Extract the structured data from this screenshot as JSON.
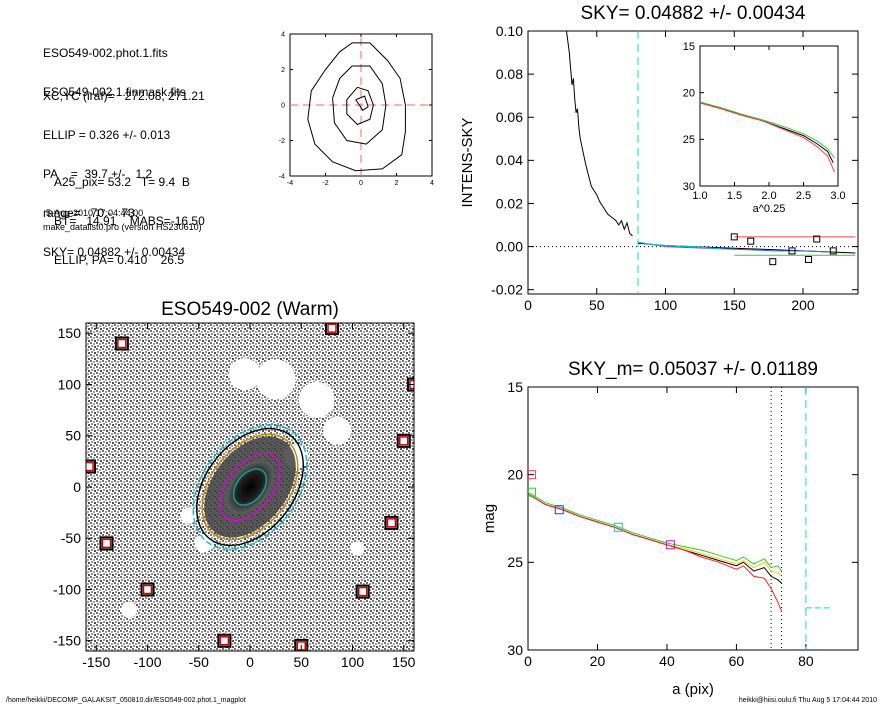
{
  "info": {
    "lines_a": [
      "ESO549-002.phot.1.fits",
      "ESO549-002.1.finmask.fits"
    ],
    "lines_b": [
      "XC,YC (iraf)=   272.08, 271.21",
      "ELLIP = 0.326 +/- 0.013",
      "PA    =  39.7 +/-   1.2",
      "range=   70.-   73.",
      "SKY= 0.04882 +/- 0.00434"
    ],
    "lines_c": [
      "A25_pix= 53.2   T= 9.4  B",
      "BT=   14.91    MABS=-16.50",
      "ELLIP, PA= 0.410    26.5"
    ],
    "timestamp": "5-Aug-2010 17:04:44.00",
    "program": "make_datalist0.pro (version HS230610)"
  },
  "footer": {
    "left": "/home/heikki/DECOMP_GALAKSIT_050810.dir/ESO549-002.phot.1_magplot",
    "right": "heikki@hiisi.oulu.fi  Thu Aug  5 17:04:44 2010"
  },
  "chart_data": [
    {
      "id": "contour",
      "type": "contour",
      "xlim": [
        -4,
        4
      ],
      "ylim": [
        -4,
        4
      ],
      "xticks": [
        -4,
        -2,
        0,
        2,
        4
      ],
      "yticks": [
        -4,
        -2,
        0,
        2,
        4
      ],
      "contours": [
        [
          [
            -0.5,
            3.5
          ],
          [
            0.5,
            3.5
          ],
          [
            1.5,
            2.5
          ],
          [
            2.2,
            1.5
          ],
          [
            2.5,
            0
          ],
          [
            2.5,
            -1.5
          ],
          [
            2.3,
            -2.8
          ],
          [
            1.2,
            -3.6
          ],
          [
            -0.3,
            -3.7
          ],
          [
            -1.6,
            -3.2
          ],
          [
            -2.6,
            -2.2
          ],
          [
            -3.0,
            -0.8
          ],
          [
            -2.8,
            0.8
          ],
          [
            -2.0,
            2.0
          ],
          [
            -1.2,
            3.0
          ],
          [
            -0.5,
            3.5
          ]
        ],
        [
          [
            -0.5,
            2.2
          ],
          [
            0.5,
            2.2
          ],
          [
            1.2,
            1.2
          ],
          [
            1.4,
            0
          ],
          [
            1.2,
            -1.4
          ],
          [
            0.3,
            -2.2
          ],
          [
            -0.8,
            -2.0
          ],
          [
            -1.5,
            -1.0
          ],
          [
            -1.6,
            0.4
          ],
          [
            -1.2,
            1.5
          ],
          [
            -0.5,
            2.2
          ]
        ],
        [
          [
            -0.2,
            1.0
          ],
          [
            0.4,
            0.8
          ],
          [
            0.7,
            0.0
          ],
          [
            0.5,
            -0.8
          ],
          [
            -0.2,
            -1.1
          ],
          [
            -0.8,
            -0.5
          ],
          [
            -0.8,
            0.3
          ],
          [
            -0.2,
            1.0
          ]
        ],
        [
          [
            -0.3,
            0.3
          ],
          [
            0.2,
            0.5
          ],
          [
            0.4,
            -0.1
          ],
          [
            0.1,
            -0.3
          ],
          [
            -0.3,
            0.3
          ]
        ]
      ],
      "crosshair": [
        0,
        0
      ],
      "colors": {
        "contour": "#000000",
        "crosshair": "#ff6666"
      }
    },
    {
      "id": "sky",
      "type": "line",
      "title": "SKY= 0.04882 +/- 0.00434",
      "xlabel": "",
      "ylabel": "INTENS-SKY",
      "xlim": [
        0,
        240
      ],
      "ylim": [
        -0.022,
        0.1
      ],
      "xticks": [
        0,
        50,
        100,
        150,
        200
      ],
      "yticks": [
        -0.02,
        0.0,
        0.02,
        0.04,
        0.06,
        0.08,
        0.1
      ],
      "ytick_labels": [
        "-0.02",
        "0.00",
        "0.02",
        "0.04",
        "0.06",
        "0.08",
        "0.10"
      ],
      "vline": 80,
      "profile": {
        "x": [
          28,
          30,
          32,
          33,
          34,
          35,
          36,
          37,
          38,
          40,
          42,
          44,
          46,
          48,
          50,
          52,
          54,
          56,
          58,
          60,
          62,
          64,
          66,
          68,
          70,
          72,
          74,
          76
        ],
        "y": [
          0.105,
          0.09,
          0.075,
          0.078,
          0.068,
          0.062,
          0.064,
          0.055,
          0.05,
          0.044,
          0.038,
          0.033,
          0.028,
          0.026,
          0.024,
          0.021,
          0.019,
          0.017,
          0.015,
          0.014,
          0.013,
          0.012,
          0.01,
          0.012,
          0.008,
          0.011,
          0.006,
          0.005
        ]
      },
      "series": [
        {
          "name": "",
          "color": "#000000",
          "x": [
            80,
            90,
            100,
            120,
            140,
            160,
            180,
            200,
            220,
            238
          ],
          "y": [
            0.0015,
            0.001,
            0.0005,
            0.0,
            -0.0005,
            -0.001,
            -0.0015,
            -0.002,
            -0.0025,
            -0.003
          ]
        },
        {
          "name": "",
          "color": "#3366ff",
          "x": [
            80,
            90,
            100,
            120,
            140,
            160,
            180,
            200,
            220
          ],
          "y": [
            0.002,
            0.001,
            0.0,
            -0.0005,
            -0.001,
            -0.0015,
            -0.002,
            -0.002,
            -0.0025
          ]
        },
        {
          "name": "",
          "color": "#00cccc",
          "x": [
            80,
            90,
            100,
            120,
            140
          ],
          "y": [
            0.002,
            0.001,
            0.0005,
            0.0,
            -0.001
          ]
        },
        {
          "name": "",
          "color": "#33cc33",
          "x": [
            150,
            238
          ],
          "y": [
            -0.004,
            -0.004
          ]
        },
        {
          "name": "",
          "color": "#ff4444",
          "x": [
            150,
            238
          ],
          "y": [
            0.0045,
            0.0045
          ]
        }
      ],
      "markers": {
        "x": [
          150,
          162,
          178,
          192,
          204,
          210,
          222
        ],
        "y": [
          0.0045,
          0.0025,
          -0.007,
          -0.002,
          -0.006,
          0.0035,
          -0.002
        ]
      },
      "inset": {
        "xlim": [
          1.0,
          3.0
        ],
        "ylim": [
          30,
          15
        ],
        "xticks": [
          1.0,
          1.5,
          2.0,
          2.5,
          3.0
        ],
        "yticks": [
          15,
          20,
          25,
          30
        ],
        "xtick_labels": [
          "1.0",
          "1.5",
          "2.0",
          "2.5",
          "3.0"
        ],
        "xlabel": "a^0.25",
        "series": [
          {
            "name": "",
            "color": "#33cc33",
            "x": [
              1.0,
              1.3,
              1.6,
              1.9,
              2.2,
              2.5,
              2.7,
              2.85,
              2.95
            ],
            "y": [
              21.0,
              21.6,
              22.3,
              22.9,
              23.6,
              24.4,
              25.2,
              26.0,
              27.0
            ]
          },
          {
            "name": "",
            "color": "#000000",
            "x": [
              1.0,
              1.3,
              1.6,
              1.9,
              2.2,
              2.5,
              2.7,
              2.85,
              2.93
            ],
            "y": [
              21.1,
              21.7,
              22.4,
              23.0,
              23.8,
              24.6,
              25.5,
              26.3,
              27.5
            ]
          },
          {
            "name": "",
            "color": "#ff4444",
            "x": [
              1.0,
              1.3,
              1.6,
              1.9,
              2.2,
              2.5,
              2.7,
              2.85,
              2.95
            ],
            "y": [
              21.1,
              21.7,
              22.4,
              23.0,
              23.9,
              24.8,
              25.8,
              26.8,
              28.5
            ]
          }
        ]
      }
    },
    {
      "id": "image",
      "type": "image",
      "title": "ESO549-002 (Warm)",
      "xlim": [
        -160,
        160
      ],
      "ylim": [
        -160,
        160
      ],
      "xticks": [
        -150,
        -100,
        -50,
        0,
        50,
        100,
        150
      ],
      "yticks": [
        -150,
        -100,
        -50,
        0,
        50,
        100,
        150
      ],
      "stars": {
        "x": [
          -125,
          80,
          160,
          150,
          -157,
          -140,
          -100,
          -25,
          50,
          110,
          138
        ],
        "y": [
          140,
          155,
          100,
          45,
          20,
          -55,
          -100,
          -150,
          -155,
          -102,
          -35
        ]
      },
      "ellipses": [
        {
          "name": "",
          "color": "#00bbdd",
          "rx": 68,
          "ry": 46,
          "angle": -52
        },
        {
          "name": "",
          "color": "#000000",
          "rx": 64,
          "ry": 43,
          "angle": -52
        },
        {
          "name": "",
          "color": "#cc8800",
          "rx": 58,
          "ry": 38,
          "angle": -52
        },
        {
          "name": "",
          "color": "#dd00dd",
          "rx": 38,
          "ry": 22,
          "angle": -52
        },
        {
          "name": "",
          "color": "#00aa99",
          "rx": 20,
          "ry": 13,
          "angle": -52
        }
      ]
    },
    {
      "id": "mag",
      "type": "line",
      "title": "SKY_m=  0.05037 +/- 0.01189",
      "xlabel": "a (pix)",
      "ylabel": "mag",
      "xlim": [
        0,
        95
      ],
      "ylim": [
        30,
        15
      ],
      "xticks": [
        0,
        20,
        40,
        60,
        80
      ],
      "yticks": [
        15,
        20,
        25,
        30
      ],
      "vlines": {
        "dotted": [
          70,
          73
        ],
        "dashed": 80
      },
      "sky_level": {
        "x": [
          80,
          87
        ],
        "y": [
          27.6,
          27.6
        ]
      },
      "series": [
        {
          "name": "",
          "color": "#33cc33",
          "x": [
            0,
            5,
            10,
            15,
            20,
            25,
            30,
            35,
            40,
            45,
            50,
            55,
            60,
            62,
            65,
            68,
            70,
            72,
            73
          ],
          "y": [
            21.0,
            21.6,
            21.9,
            22.3,
            22.6,
            22.9,
            23.3,
            23.6,
            23.9,
            24.1,
            24.3,
            24.6,
            24.9,
            24.7,
            25.1,
            24.8,
            25.3,
            25.2,
            25.5
          ]
        },
        {
          "name": "",
          "color": "#ffcc00",
          "x": [
            0,
            5,
            10,
            15,
            20,
            25,
            30,
            35,
            40,
            45,
            50,
            55,
            60,
            62,
            65,
            68,
            70,
            72,
            73
          ],
          "y": [
            21.1,
            21.7,
            22.0,
            22.4,
            22.7,
            23.0,
            23.4,
            23.7,
            24.0,
            24.2,
            24.5,
            24.8,
            25.1,
            24.9,
            25.3,
            25.0,
            25.5,
            25.6,
            25.8
          ]
        },
        {
          "name": "",
          "color": "#000000",
          "x": [
            0,
            5,
            10,
            15,
            20,
            25,
            30,
            35,
            40,
            45,
            50,
            55,
            60,
            62,
            65,
            68,
            70,
            72,
            73
          ],
          "y": [
            21.1,
            21.7,
            22.0,
            22.4,
            22.7,
            23.0,
            23.4,
            23.7,
            24.0,
            24.3,
            24.6,
            24.9,
            25.2,
            25.0,
            25.5,
            25.3,
            25.8,
            26.0,
            26.2
          ]
        },
        {
          "name": "",
          "color": "#ff2222",
          "x": [
            0,
            5,
            10,
            15,
            20,
            25,
            30,
            35,
            40,
            45,
            50,
            55,
            60,
            62,
            65,
            68,
            70,
            72,
            73
          ],
          "y": [
            21.1,
            21.7,
            22.0,
            22.4,
            22.7,
            23.0,
            23.4,
            23.7,
            24.0,
            24.3,
            24.7,
            25.0,
            25.4,
            25.2,
            25.8,
            25.9,
            26.5,
            27.3,
            27.8
          ]
        }
      ],
      "markers": [
        {
          "color": "#ff4444",
          "x": 1,
          "y": 20.0
        },
        {
          "color": "#33cc33",
          "x": 1,
          "y": 21.0
        },
        {
          "color": "#3333ff",
          "x": 9,
          "y": 22.0
        },
        {
          "color": "#00cccc",
          "x": 26,
          "y": 23.0
        },
        {
          "color": "#dd00dd",
          "x": 41,
          "y": 24.0
        }
      ]
    }
  ]
}
